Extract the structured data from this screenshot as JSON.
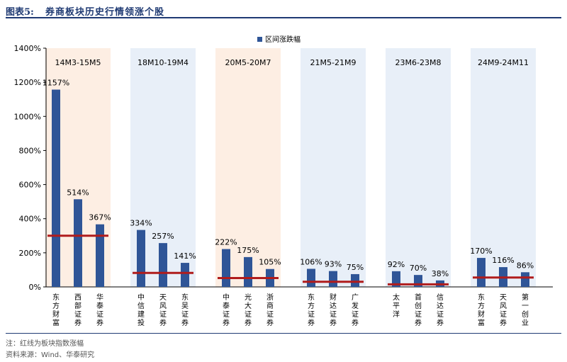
{
  "header": {
    "figure_label": "图表5:",
    "title": "券商板块历史行情领涨个股"
  },
  "footer": {
    "note": "注：红线为板块指数涨幅",
    "source": "资料来源：Wind、华泰研究"
  },
  "colors": {
    "bar": "#2f5597",
    "redline": "#b01c1c",
    "band_orange": "#fdeee3",
    "band_blue": "#e8eff8",
    "title": "#1f3a73"
  },
  "chart_data": {
    "type": "bar",
    "legend": {
      "label": "区间涨跌幅",
      "position": "top-center"
    },
    "ylim": [
      0,
      1400
    ],
    "yticks": [
      0,
      200,
      400,
      600,
      800,
      1000,
      1200,
      1400
    ],
    "ytick_labels": [
      "0%",
      "200%",
      "400%",
      "600%",
      "800%",
      "1000%",
      "1200%",
      "1400%"
    ],
    "grid": false,
    "groups": [
      {
        "label": "14M3-15M5",
        "band": "orange",
        "index_gain": 300,
        "items": [
          {
            "name": "东方财富",
            "value": 1157,
            "label": "1157%"
          },
          {
            "name": "西部证券",
            "value": 514,
            "label": "514%"
          },
          {
            "name": "华泰证券",
            "value": 367,
            "label": "367%"
          }
        ]
      },
      {
        "label": "18M10-19M4",
        "band": "blue",
        "index_gain": 82,
        "items": [
          {
            "name": "中信建投",
            "value": 334,
            "label": "334%"
          },
          {
            "name": "天风证券",
            "value": 257,
            "label": "257%"
          },
          {
            "name": "东吴证券",
            "value": 141,
            "label": "141%"
          }
        ]
      },
      {
        "label": "20M5-20M7",
        "band": "orange",
        "index_gain": 52,
        "items": [
          {
            "name": "中泰证券",
            "value": 222,
            "label": "222%"
          },
          {
            "name": "光大证券",
            "value": 175,
            "label": "175%"
          },
          {
            "name": "浙商证券",
            "value": 105,
            "label": "105%"
          }
        ]
      },
      {
        "label": "21M5-21M9",
        "band": "blue",
        "index_gain": 30,
        "items": [
          {
            "name": "东方证券",
            "value": 106,
            "label": "106%"
          },
          {
            "name": "财达证券",
            "value": 93,
            "label": "93%"
          },
          {
            "name": "广发证券",
            "value": 75,
            "label": "75%"
          }
        ]
      },
      {
        "label": "23M6-23M8",
        "band": "blue",
        "index_gain": 15,
        "items": [
          {
            "name": "太平洋",
            "value": 92,
            "label": "92%"
          },
          {
            "name": "首创证券",
            "value": 70,
            "label": "70%"
          },
          {
            "name": "信达证券",
            "value": 38,
            "label": "38%"
          }
        ]
      },
      {
        "label": "24M9-24M11",
        "band": "blue",
        "index_gain": 55,
        "items": [
          {
            "name": "东方财富",
            "value": 170,
            "label": "170%"
          },
          {
            "name": "天风证券",
            "value": 116,
            "label": "116%"
          },
          {
            "name": "第一创业",
            "value": 86,
            "label": "86%"
          }
        ]
      }
    ]
  }
}
